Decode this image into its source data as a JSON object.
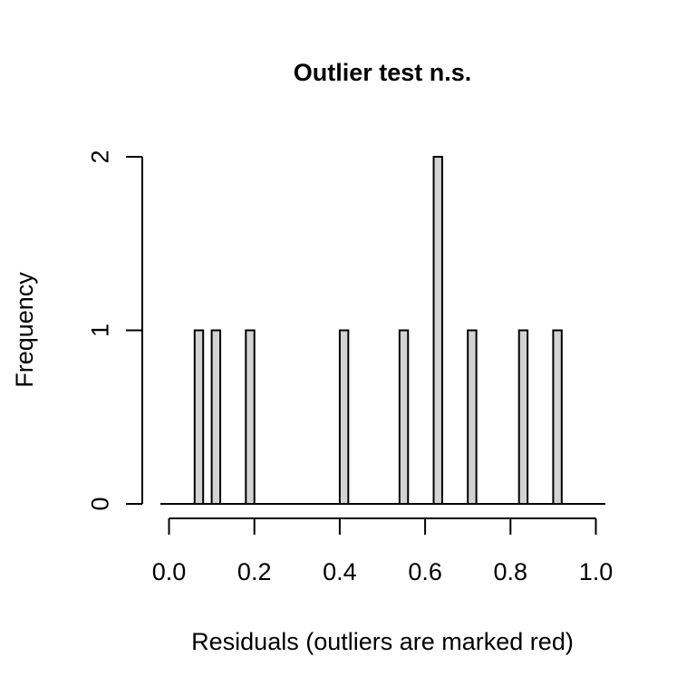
{
  "chart_data": {
    "type": "bar",
    "title": "Outlier test n.s.",
    "xlabel": "Residuals (outliers are marked red)",
    "ylabel": "Frequency",
    "xlim": [
      0.0,
      1.0
    ],
    "ylim": [
      0,
      2
    ],
    "x_ticks": [
      "0.0",
      "0.2",
      "0.4",
      "0.6",
      "0.8",
      "1.0"
    ],
    "y_ticks": [
      "0",
      "1",
      "2"
    ],
    "bin_width": 0.02,
    "bins": [
      {
        "x": 0.07,
        "count": 1
      },
      {
        "x": 0.11,
        "count": 1
      },
      {
        "x": 0.19,
        "count": 1
      },
      {
        "x": 0.41,
        "count": 1
      },
      {
        "x": 0.55,
        "count": 1
      },
      {
        "x": 0.63,
        "count": 2
      },
      {
        "x": 0.71,
        "count": 1
      },
      {
        "x": 0.83,
        "count": 1
      },
      {
        "x": 0.91,
        "count": 1
      }
    ],
    "bar_color": "#d3d3d3",
    "outlier_color": "#ff0000",
    "grid": false,
    "legend": "none"
  }
}
